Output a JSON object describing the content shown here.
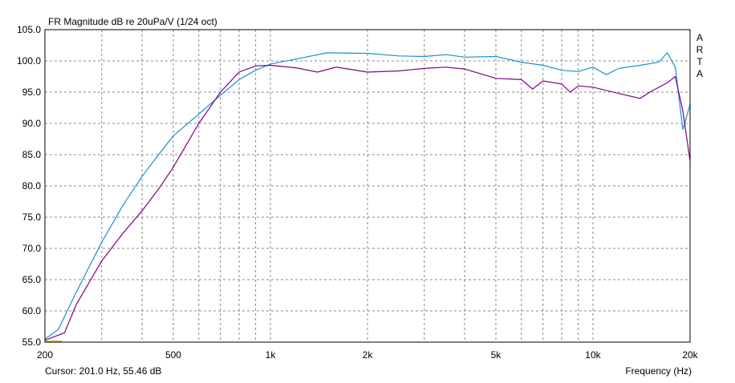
{
  "chart_data": {
    "type": "line",
    "title": "FR Magnitude dB re 20uPa/V (1/24 oct)",
    "brand": "ARTA",
    "cursor_text": "Cursor: 201.0 Hz, 55.46 dB",
    "x_label": "Frequency (Hz)",
    "log_x": true,
    "grid": true,
    "xlim": [
      200,
      20000
    ],
    "ylim": [
      55,
      105
    ],
    "xticks": [
      200,
      500,
      {
        "value": 1000,
        "label": "1k"
      },
      {
        "value": 2000,
        "label": "2k"
      },
      {
        "value": 5000,
        "label": "5k"
      },
      {
        "value": 10000,
        "label": "10k"
      },
      {
        "value": 20000,
        "label": "20k"
      }
    ],
    "x_minor_ticks": [
      300,
      400,
      600,
      700,
      800,
      900,
      3000,
      4000,
      6000,
      7000,
      8000,
      9000
    ],
    "yticks": [
      {
        "value": 55,
        "label": "55.0"
      },
      {
        "value": 60,
        "label": "60.0"
      },
      {
        "value": 65,
        "label": "65.0"
      },
      {
        "value": 70,
        "label": "70.0"
      },
      {
        "value": 75,
        "label": "75.0"
      },
      {
        "value": 80,
        "label": "80.0"
      },
      {
        "value": 85,
        "label": "85.0"
      },
      {
        "value": 90,
        "label": "90.0"
      },
      {
        "value": 95,
        "label": "95.0"
      },
      {
        "value": 100,
        "label": "100.0"
      },
      {
        "value": 105,
        "label": "105.0"
      }
    ],
    "series": [
      {
        "color": "#1a8fd6",
        "x": [
          200,
          220,
          250,
          300,
          350,
          400,
          450,
          500,
          600,
          700,
          800,
          900,
          1000,
          1200,
          1500,
          2000,
          2500,
          3000,
          3500,
          4000,
          5000,
          6000,
          7000,
          8000,
          9000,
          10000,
          11000,
          12000,
          14000,
          16000,
          17000,
          18000,
          19000,
          20000
        ],
        "values": [
          55.5,
          57,
          63,
          71,
          77,
          81.5,
          85,
          88,
          91.5,
          94.5,
          97,
          98.5,
          99.5,
          100.3,
          101.3,
          101.2,
          100.8,
          100.7,
          101,
          100.6,
          100.7,
          99.8,
          99.3,
          98.5,
          98.3,
          99,
          97.8,
          98.8,
          99.3,
          99.8,
          101.3,
          99,
          89,
          93
        ]
      },
      {
        "color": "#800080",
        "x": [
          200,
          230,
          250,
          300,
          350,
          400,
          450,
          500,
          600,
          700,
          800,
          900,
          1000,
          1200,
          1400,
          1600,
          2000,
          2500,
          3000,
          3500,
          4000,
          5000,
          6000,
          6500,
          7000,
          8000,
          8500,
          9000,
          10000,
          12000,
          14000,
          15000,
          17000,
          18000,
          19000,
          20000
        ],
        "values": [
          55.3,
          56.5,
          61,
          68,
          72.5,
          76,
          79.5,
          83,
          90,
          95,
          98.2,
          99.2,
          99.3,
          98.9,
          98.2,
          99,
          98.2,
          98.4,
          98.8,
          99,
          98.7,
          97.2,
          97,
          95.5,
          96.8,
          96.3,
          95,
          96,
          95.8,
          94.8,
          94,
          95,
          96.5,
          97.5,
          92,
          84
        ]
      }
    ]
  }
}
